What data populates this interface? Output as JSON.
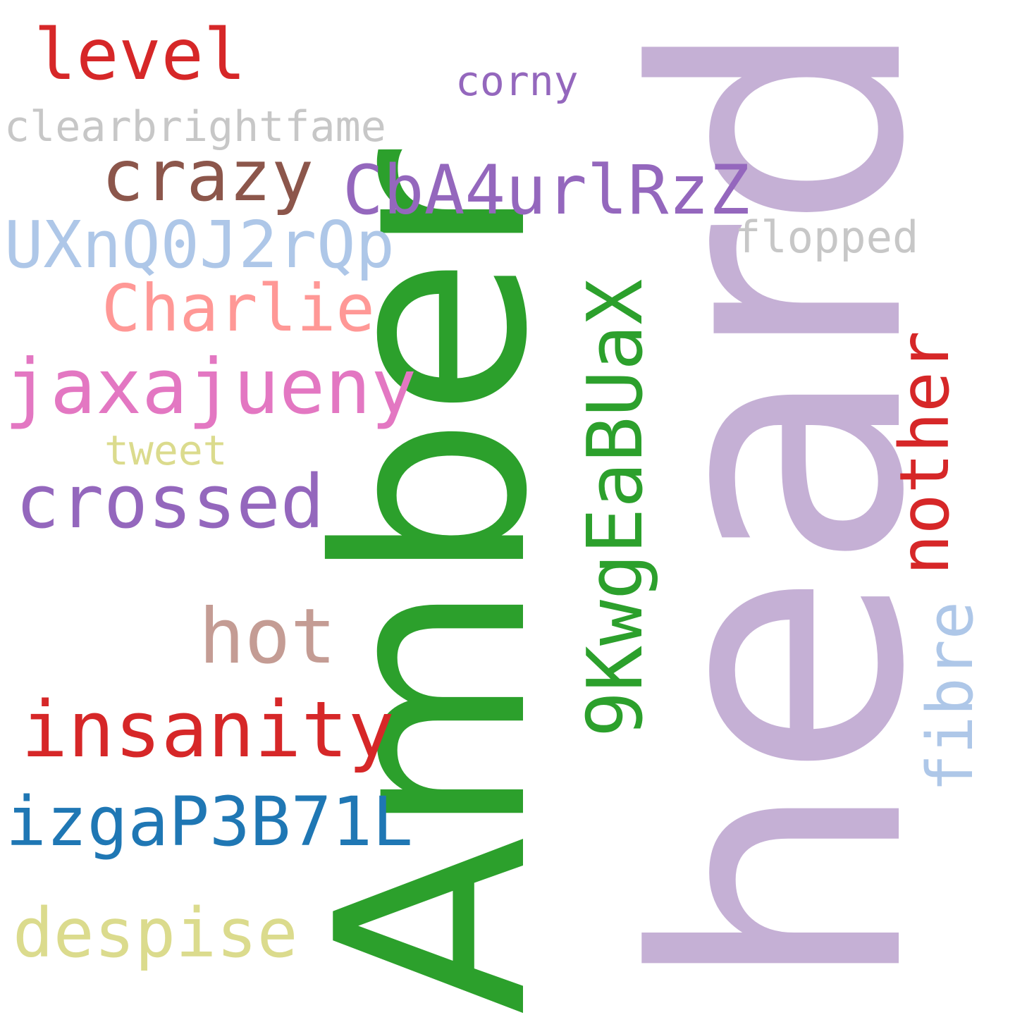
{
  "word_cloud": {
    "words": [
      {
        "text": "heard",
        "color": "#c5b0d5",
        "orientation": "vertical"
      },
      {
        "text": "Amber",
        "color": "#2ca02c",
        "orientation": "vertical"
      },
      {
        "text": "level",
        "color": "#d62728",
        "orientation": "horizontal"
      },
      {
        "text": "corny",
        "color": "#9467bd",
        "orientation": "horizontal"
      },
      {
        "text": "clearbrightfame",
        "color": "#c7c7c7",
        "orientation": "horizontal"
      },
      {
        "text": "crazy",
        "color": "#8c564b",
        "orientation": "horizontal"
      },
      {
        "text": "CbA4urlRzZ",
        "color": "#9467bd",
        "orientation": "horizontal"
      },
      {
        "text": "UXnQ0J2rQp",
        "color": "#aec7e8",
        "orientation": "horizontal"
      },
      {
        "text": "flopped",
        "color": "#c7c7c7",
        "orientation": "horizontal"
      },
      {
        "text": "Charlie",
        "color": "#ff9896",
        "orientation": "horizontal"
      },
      {
        "text": "9KwgEaBUaX",
        "color": "#2ca02c",
        "orientation": "vertical"
      },
      {
        "text": "nother",
        "color": "#d62728",
        "orientation": "vertical"
      },
      {
        "text": "jaxajueny",
        "color": "#e377c2",
        "orientation": "horizontal"
      },
      {
        "text": "tweet",
        "color": "#dbdb8d",
        "orientation": "horizontal"
      },
      {
        "text": "crossed",
        "color": "#9467bd",
        "orientation": "horizontal"
      },
      {
        "text": "hot",
        "color": "#c49c94",
        "orientation": "horizontal"
      },
      {
        "text": "fibre",
        "color": "#aec7e8",
        "orientation": "vertical"
      },
      {
        "text": "insanity",
        "color": "#d62728",
        "orientation": "horizontal"
      },
      {
        "text": "izgaP3B71L",
        "color": "#1f77b4",
        "orientation": "horizontal"
      },
      {
        "text": "despise",
        "color": "#dbdb8d",
        "orientation": "horizontal"
      }
    ]
  }
}
